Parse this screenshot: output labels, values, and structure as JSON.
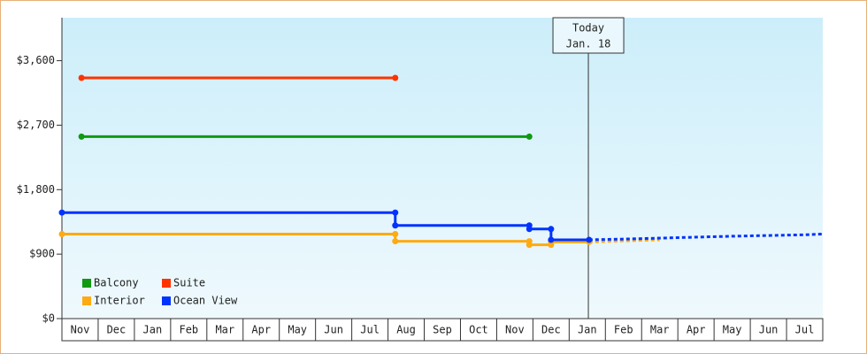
{
  "chart_data": {
    "type": "step-line",
    "xlim": [
      0,
      21
    ],
    "ylim": [
      0,
      4200
    ],
    "xticks": [
      {
        "value": 0.5,
        "label": "Nov"
      },
      {
        "value": 1.5,
        "label": "Dec"
      },
      {
        "value": 2.5,
        "label": "Jan"
      },
      {
        "value": 3.5,
        "label": "Feb"
      },
      {
        "value": 4.5,
        "label": "Mar"
      },
      {
        "value": 5.5,
        "label": "Apr"
      },
      {
        "value": 6.5,
        "label": "May"
      },
      {
        "value": 7.5,
        "label": "Jun"
      },
      {
        "value": 8.5,
        "label": "Jul"
      },
      {
        "value": 9.5,
        "label": "Aug"
      },
      {
        "value": 10.5,
        "label": "Sep"
      },
      {
        "value": 11.5,
        "label": "Oct"
      },
      {
        "value": 12.5,
        "label": "Nov"
      },
      {
        "value": 13.5,
        "label": "Dec"
      },
      {
        "value": 14.5,
        "label": "Jan"
      },
      {
        "value": 15.5,
        "label": "Feb"
      },
      {
        "value": 16.5,
        "label": "Mar"
      },
      {
        "value": 17.5,
        "label": "Apr"
      },
      {
        "value": 18.5,
        "label": "May"
      },
      {
        "value": 19.5,
        "label": "Jun"
      },
      {
        "value": 20.5,
        "label": "Jul"
      }
    ],
    "yticks": [
      {
        "value": 0,
        "label": "$0"
      },
      {
        "value": 900,
        "label": "$900"
      },
      {
        "value": 1800,
        "label": "$1,800"
      },
      {
        "value": 2700,
        "label": "$2,700"
      },
      {
        "value": 3600,
        "label": "$3,600"
      }
    ],
    "legend": "lower left",
    "series": [
      {
        "name": "Balcony",
        "color": "#119911",
        "x": [
          0.54,
          12.9
        ],
        "values": [
          2540,
          2540
        ]
      },
      {
        "name": "Suite",
        "color": "#ff3300",
        "x": [
          0.54,
          9.2
        ],
        "values": [
          3360,
          3360
        ]
      },
      {
        "name": "Interior",
        "color": "#ffaa11",
        "x": [
          0,
          9.2,
          12.9,
          13.5,
          14.55
        ],
        "values": [
          1180,
          1080,
          1030,
          1070,
          1070
        ],
        "forecast_x": [
          14.55,
          15.5,
          16.5
        ],
        "forecast_values": [
          1070,
          1085,
          1100
        ]
      },
      {
        "name": "Ocean View",
        "color": "#0033ff",
        "x": [
          0,
          9.2,
          12.9,
          13.5,
          14.55
        ],
        "values": [
          1480,
          1300,
          1250,
          1100,
          1100
        ],
        "forecast_x": [
          14.55,
          15.5,
          17,
          18.5,
          19.5,
          20.5,
          21
        ],
        "forecast_values": [
          1100,
          1110,
          1130,
          1150,
          1160,
          1170,
          1180
        ]
      }
    ],
    "annotation": {
      "x": 14.53,
      "lines": [
        "Today",
        "Jan. 18"
      ]
    }
  }
}
